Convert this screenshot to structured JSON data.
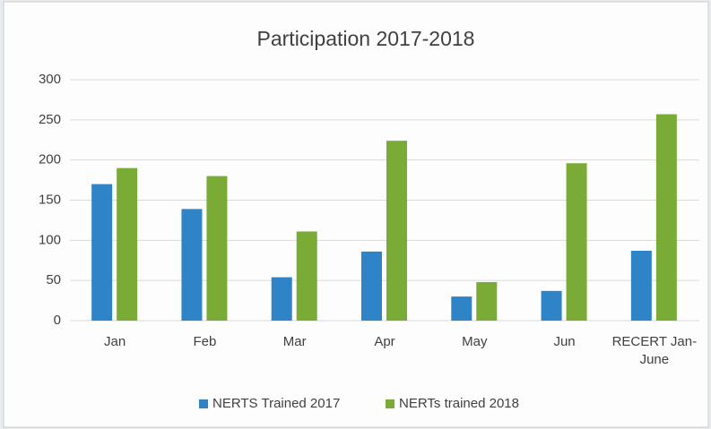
{
  "chart_data": {
    "type": "bar",
    "title": "Participation 2017-2018",
    "categories": [
      "Jan",
      "Feb",
      "Mar",
      "Apr",
      "May",
      "Jun",
      "RECERT Jan-June"
    ],
    "series": [
      {
        "name": "NERTS Trained 2017",
        "color": "#2f83c7",
        "values": [
          170,
          139,
          54,
          86,
          30,
          37,
          87
        ]
      },
      {
        "name": "NERTs trained 2018",
        "color": "#7aab37",
        "values": [
          190,
          180,
          111,
          224,
          48,
          196,
          257
        ]
      }
    ],
    "ylim": [
      0,
      300
    ],
    "yticks": [
      0,
      50,
      100,
      150,
      200,
      250,
      300
    ],
    "grid": true,
    "legend": "bottom"
  }
}
